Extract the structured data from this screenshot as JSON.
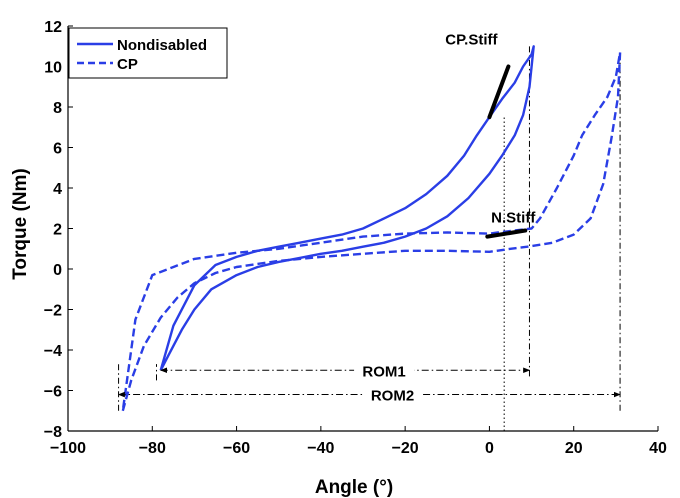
{
  "chart_data": {
    "type": "line",
    "xlabel": "Angle (°)",
    "ylabel": "Torque (Nm)",
    "xlim": [
      -100,
      40
    ],
    "ylim": [
      -8,
      12
    ],
    "xticks": [
      -100,
      -80,
      -60,
      -40,
      -20,
      0,
      20,
      40
    ],
    "yticks": [
      -8,
      -6,
      -4,
      -2,
      0,
      2,
      4,
      6,
      8,
      10,
      12
    ],
    "xtick_labels": [
      "−100",
      "−80",
      "−60",
      "−40",
      "−20",
      "0",
      "20",
      "40"
    ],
    "ytick_labels": [
      "−8",
      "−6",
      "−4",
      "−2",
      "0",
      "2",
      "4",
      "6",
      "8",
      "10",
      "12"
    ],
    "grid": false,
    "legend_position": "top-left",
    "colors": {
      "series": "#2a3ee6",
      "stiffness": "#000000",
      "axes": "#000000"
    },
    "series": [
      {
        "name": "Nondisabled",
        "style": "solid",
        "x": [
          -78,
          -76,
          -73,
          -70,
          -66,
          -60,
          -55,
          -50,
          -45,
          -40,
          -35,
          -30,
          -25,
          -20,
          -15,
          -10,
          -5,
          0,
          3,
          6,
          8,
          9.5,
          10.5,
          10,
          8,
          6,
          3,
          0,
          -3,
          -6,
          -10,
          -15,
          -20,
          -25,
          -30,
          -35,
          -40,
          -45,
          -50,
          -55,
          -60,
          -65,
          -70,
          -75,
          -78
        ],
        "y": [
          -5.0,
          -4.2,
          -3.0,
          -2.0,
          -1.0,
          -0.3,
          0.1,
          0.35,
          0.55,
          0.75,
          0.9,
          1.1,
          1.3,
          1.6,
          2.0,
          2.6,
          3.5,
          4.7,
          5.6,
          6.6,
          7.6,
          9.0,
          11.0,
          10.6,
          10.0,
          9.2,
          8.4,
          7.5,
          6.6,
          5.6,
          4.6,
          3.7,
          3.0,
          2.5,
          2.0,
          1.7,
          1.5,
          1.3,
          1.1,
          0.9,
          0.6,
          0.2,
          -0.8,
          -2.8,
          -5.0
        ]
      },
      {
        "name": "CP",
        "style": "dashed",
        "x": [
          -87,
          -85,
          -82,
          -78,
          -74,
          -70,
          -65,
          -60,
          -50,
          -40,
          -30,
          -20,
          -10,
          0,
          5,
          9,
          15,
          20,
          24,
          27,
          29,
          30.5,
          31,
          30,
          28,
          25,
          22,
          20,
          16,
          12,
          10,
          6,
          2,
          0,
          -10,
          -20,
          -30,
          -40,
          -50,
          -60,
          -70,
          -75,
          -80,
          -84,
          -87
        ],
        "y": [
          -7.0,
          -5.5,
          -3.8,
          -2.4,
          -1.4,
          -0.7,
          -0.2,
          0.1,
          0.4,
          0.6,
          0.75,
          0.9,
          0.9,
          0.85,
          1.0,
          1.1,
          1.3,
          1.7,
          2.5,
          4.2,
          6.5,
          8.5,
          10.7,
          9.5,
          8.5,
          7.6,
          6.6,
          5.6,
          4.0,
          2.5,
          2.0,
          1.9,
          1.8,
          1.75,
          1.8,
          1.75,
          1.6,
          1.3,
          1.0,
          0.8,
          0.5,
          0.1,
          -0.3,
          -2.5,
          -7.0
        ]
      }
    ],
    "stiffness_segments": [
      {
        "label": "CP.Stiff",
        "x": [
          0,
          4.5
        ],
        "y": [
          7.5,
          10.0
        ]
      },
      {
        "label": "N.Stiff",
        "x": [
          -0.5,
          8.5
        ],
        "y": [
          1.6,
          1.9
        ]
      }
    ],
    "reference_lines": [
      {
        "orientation": "vertical",
        "x": 3.5,
        "y": [
          -8,
          7.6
        ],
        "style": "dotted"
      },
      {
        "orientation": "vertical",
        "x": 9.5,
        "y": [
          -5.3,
          11
        ],
        "style": "dash-dot"
      },
      {
        "orientation": "vertical",
        "x": 31,
        "y": [
          -7,
          10.7
        ],
        "style": "dash-dot"
      },
      {
        "orientation": "vertical",
        "x": -88,
        "y": [
          -7,
          -4.7
        ],
        "style": "dash-dot"
      },
      {
        "orientation": "vertical",
        "x": -79,
        "y": [
          -5.5,
          -4.7
        ],
        "style": "dash-dot"
      }
    ],
    "annotations": [
      {
        "label": "ROM1",
        "from": -78,
        "to": 9.5,
        "y": -5.0,
        "label_x": -25
      },
      {
        "label": "ROM2",
        "from": -88,
        "to": 31,
        "y": -6.2,
        "label_x": -23
      }
    ]
  }
}
